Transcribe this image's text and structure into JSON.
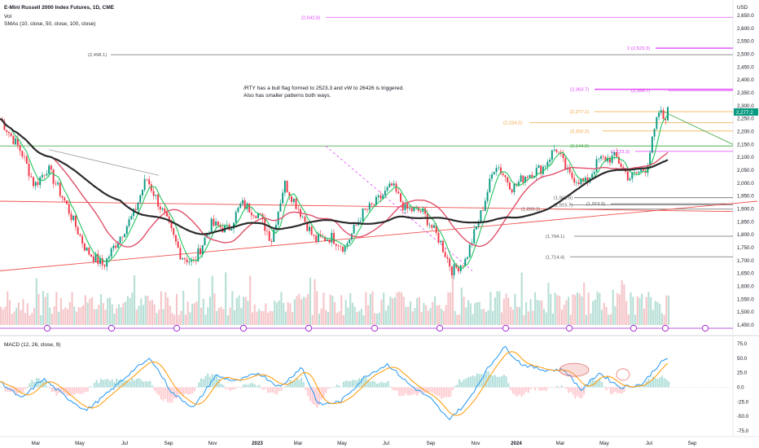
{
  "header": {
    "title": "E-Mini Russell 2000 Index Futures, 1D, CME",
    "vol_label": "Vol",
    "sma_label": "SMAs (10, close, 50, close, 100, close)",
    "macd_label": "MACD (12, 26, close, 9)",
    "currency": "USD"
  },
  "annotation": {
    "line1": "/RTY has a bull flag formed to 2523.3 and vW to 26426 is triggered.",
    "line2": "Also has smaller patterns both ways."
  },
  "chart_data": {
    "type": "candlestick",
    "instrument": "E-Mini Russell 2000 Index Futures",
    "interval": "1D",
    "exchange": "CME",
    "y_axis_ticks": [
      "2,650.0",
      "2,600.0",
      "2,550.0",
      "2,500.0",
      "2,450.0",
      "2,400.0",
      "2,350.0",
      "2,300.0",
      "2,250.0",
      "2,200.0",
      "2,150.0",
      "2,100.0",
      "2,050.0",
      "2,000.0",
      "1,950.0",
      "1,900.0",
      "1,850.0",
      "1,800.0",
      "1,750.0",
      "1,700.0",
      "1,650.0",
      "1,600.0",
      "1,550.0",
      "1,500.0",
      "1,450.0"
    ],
    "x_axis_ticks": [
      "Mar",
      "May",
      "Jul",
      "Sep",
      "Nov",
      "2023",
      "Mar",
      "May",
      "Jul",
      "Sep",
      "Nov",
      "2024",
      "Mar",
      "May",
      "Jul",
      "Sep"
    ],
    "last_price_label": "2,277.2",
    "price_path": [
      {
        "t": 0,
        "v": 2250
      },
      {
        "t": 5,
        "v": 2120
      },
      {
        "t": 8,
        "v": 1990
      },
      {
        "t": 11,
        "v": 2060
      },
      {
        "t": 15,
        "v": 1930
      },
      {
        "t": 20,
        "v": 1740
      },
      {
        "t": 24,
        "v": 1680
      },
      {
        "t": 27,
        "v": 1770
      },
      {
        "t": 31,
        "v": 1880
      },
      {
        "t": 34,
        "v": 2020
      },
      {
        "t": 38,
        "v": 1880
      },
      {
        "t": 42,
        "v": 1720
      },
      {
        "t": 45,
        "v": 1690
      },
      {
        "t": 49,
        "v": 1840
      },
      {
        "t": 53,
        "v": 1820
      },
      {
        "t": 56,
        "v": 1920
      },
      {
        "t": 60,
        "v": 1880
      },
      {
        "t": 63,
        "v": 1780
      },
      {
        "t": 66,
        "v": 2000
      },
      {
        "t": 70,
        "v": 1880
      },
      {
        "t": 73,
        "v": 1780
      },
      {
        "t": 77,
        "v": 1790
      },
      {
        "t": 80,
        "v": 1750
      },
      {
        "t": 84,
        "v": 1880
      },
      {
        "t": 87,
        "v": 1920
      },
      {
        "t": 91,
        "v": 1990
      },
      {
        "t": 94,
        "v": 1900
      },
      {
        "t": 98,
        "v": 1890
      },
      {
        "t": 102,
        "v": 1780
      },
      {
        "t": 105,
        "v": 1660
      },
      {
        "t": 108,
        "v": 1700
      },
      {
        "t": 112,
        "v": 1900
      },
      {
        "t": 115,
        "v": 2080
      },
      {
        "t": 119,
        "v": 1980
      },
      {
        "t": 122,
        "v": 2030
      },
      {
        "t": 126,
        "v": 2060
      },
      {
        "t": 129,
        "v": 2140
      },
      {
        "t": 132,
        "v": 2030
      },
      {
        "t": 136,
        "v": 2000
      },
      {
        "t": 139,
        "v": 2090
      },
      {
        "t": 143,
        "v": 2100
      },
      {
        "t": 146,
        "v": 2020
      },
      {
        "t": 150,
        "v": 2060
      },
      {
        "t": 153,
        "v": 2280
      },
      {
        "t": 154,
        "v": 2250
      },
      {
        "t": 155,
        "v": 2277
      }
    ],
    "moving_averages": [
      {
        "name": "SMA 10",
        "color": "#22c55e"
      },
      {
        "name": "SMA 50",
        "color": "#e0506a"
      },
      {
        "name": "SMA 100",
        "color": "#2b2b2b"
      }
    ],
    "level_labels": [
      {
        "text": "(2,642.8)",
        "value": 2642.8,
        "color": "#e040fb"
      },
      {
        "text": "2 (2,523.3)",
        "value": 2523.3,
        "color": "#e040fb"
      },
      {
        "text": "(2,498.1)",
        "value": 2498.1,
        "color": "#555555"
      },
      {
        "text": "(2,363.7)",
        "value": 2363.7,
        "color": "#e040fb"
      },
      {
        "text": "(2,358.7)",
        "value": 2358.7,
        "color": "#e040fb"
      },
      {
        "text": "(2,277.1)",
        "value": 2277.1,
        "color": "#f2a33a"
      },
      {
        "text": "(2,234.2)",
        "value": 2234.2,
        "color": "#f2a33a"
      },
      {
        "text": "(2,202.2)",
        "value": 2202.2,
        "color": "#f2a33a"
      },
      {
        "text": "(2,144.0)",
        "value": 2144.0,
        "color": "#4caf50"
      },
      {
        "text": "(2,123.3)",
        "value": 2123.3,
        "color": "#e040fb"
      },
      {
        "text": "(1,943.6)",
        "value": 1943.6,
        "color": "#555555"
      },
      {
        "text": "(1,915.7)",
        "value": 1915.7,
        "color": "#555555"
      },
      {
        "text": "(1,919.9)",
        "value": 1919.9,
        "color": "#555555"
      },
      {
        "text": "(1,899.3)",
        "value": 1899.3,
        "color": "#555555"
      },
      {
        "text": "(1,794.1)",
        "value": 1794.1,
        "color": "#555555"
      },
      {
        "text": "(1,714.4)",
        "value": 1714.4,
        "color": "#555555"
      }
    ],
    "macd": {
      "axis_ticks": [
        "75.0",
        "50.0",
        "25.0",
        "0.0",
        "-25.0",
        "-50.0",
        "-75.0"
      ],
      "macd_line_color": "#2196f3",
      "signal_line_color": "#ff9800",
      "path": [
        {
          "t": 0,
          "v": 10
        },
        {
          "t": 5,
          "v": -20
        },
        {
          "t": 10,
          "v": 15
        },
        {
          "t": 15,
          "v": -15
        },
        {
          "t": 20,
          "v": -40
        },
        {
          "t": 25,
          "v": -10
        },
        {
          "t": 31,
          "v": 30
        },
        {
          "t": 35,
          "v": 50
        },
        {
          "t": 40,
          "v": -10
        },
        {
          "t": 45,
          "v": -35
        },
        {
          "t": 50,
          "v": 20
        },
        {
          "t": 55,
          "v": 10
        },
        {
          "t": 60,
          "v": 25
        },
        {
          "t": 65,
          "v": 0
        },
        {
          "t": 70,
          "v": 35
        },
        {
          "t": 74,
          "v": -30
        },
        {
          "t": 79,
          "v": -25
        },
        {
          "t": 85,
          "v": 20
        },
        {
          "t": 90,
          "v": 40
        },
        {
          "t": 95,
          "v": 5
        },
        {
          "t": 100,
          "v": -20
        },
        {
          "t": 104,
          "v": -55
        },
        {
          "t": 108,
          "v": -30
        },
        {
          "t": 113,
          "v": 30
        },
        {
          "t": 117,
          "v": 70
        },
        {
          "t": 121,
          "v": 40
        },
        {
          "t": 126,
          "v": 30
        },
        {
          "t": 131,
          "v": 30
        },
        {
          "t": 135,
          "v": -5
        },
        {
          "t": 139,
          "v": 25
        },
        {
          "t": 144,
          "v": 0
        },
        {
          "t": 149,
          "v": 5
        },
        {
          "t": 153,
          "v": 40
        },
        {
          "t": 155,
          "v": 50
        }
      ]
    }
  }
}
